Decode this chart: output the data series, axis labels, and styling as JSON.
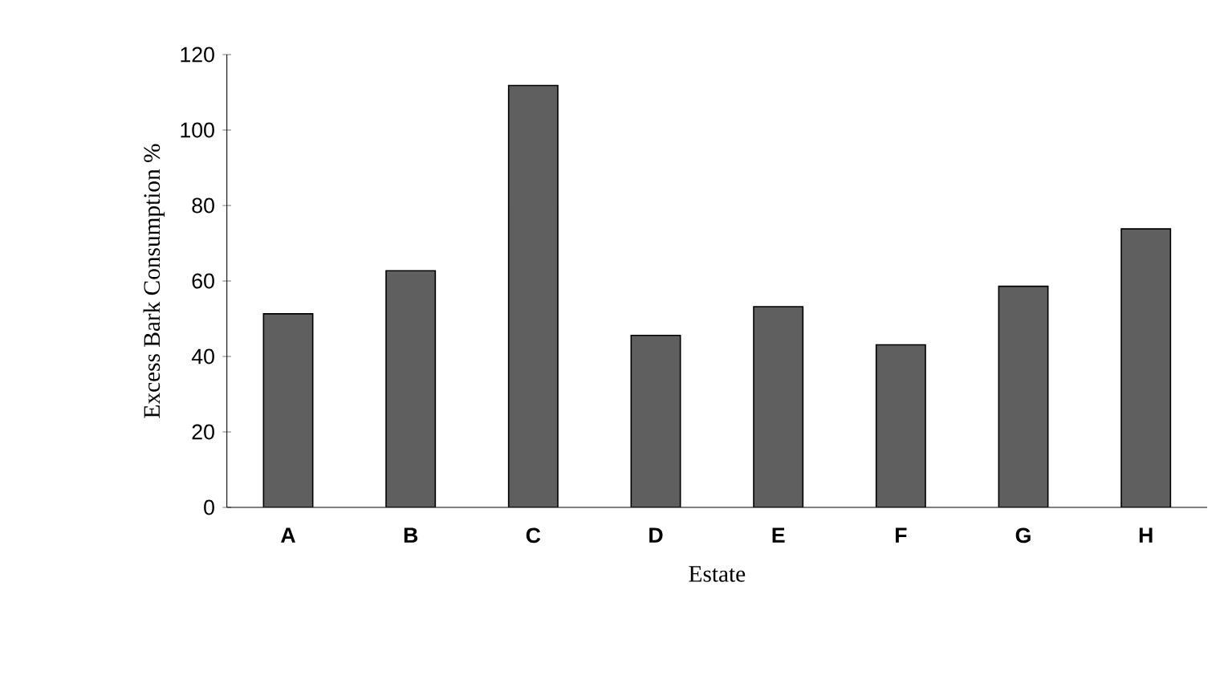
{
  "chart_data": {
    "type": "bar",
    "xlabel": "Estate",
    "ylabel": "Excess Bark Consumption %",
    "categories": [
      "A",
      "B",
      "C",
      "D",
      "E",
      "F",
      "G",
      "H"
    ],
    "values": [
      51.3,
      62.7,
      111.8,
      45.6,
      53.2,
      43.1,
      58.6,
      73.8
    ],
    "color": "#5f5f5f",
    "ylim": [
      0,
      120
    ],
    "yticks": [
      0,
      20,
      40,
      60,
      80,
      100,
      120
    ],
    "grid": false
  }
}
